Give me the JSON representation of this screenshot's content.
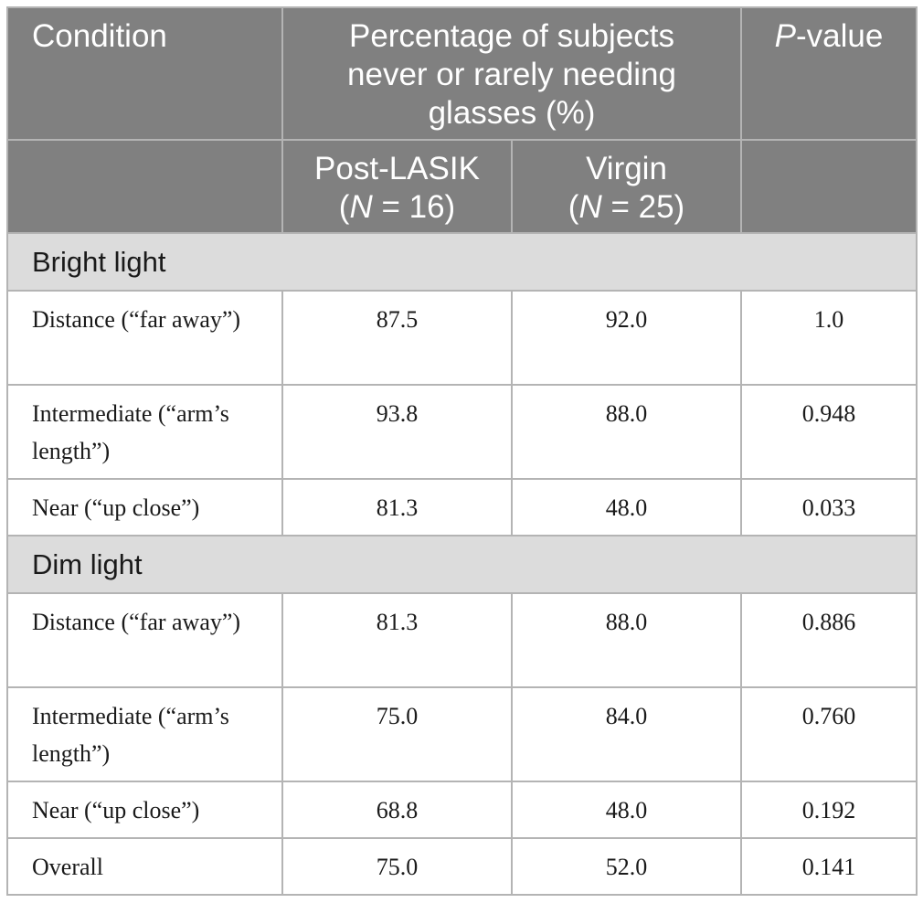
{
  "header": {
    "condition": "Condition",
    "percentage_heading": "Percentage of subjects never or rarely needing glasses (%)",
    "pvalue_p": "P",
    "pvalue_suffix": "-value",
    "post_lasik_label": "Post-LASIK",
    "post_lasik_n_prefix": "(",
    "post_lasik_n_var": "N",
    "post_lasik_n_value": " = 16)",
    "virgin_label": "Virgin",
    "virgin_n_prefix": "(",
    "virgin_n_var": "N",
    "virgin_n_value": " = 25)"
  },
  "sections": [
    {
      "title": "Bright light",
      "rows": [
        {
          "condition": "Distance (“far away”)",
          "post_lasik": "87.5",
          "virgin": "92.0",
          "p_value": "1.0"
        },
        {
          "condition": "Intermediate (“arm’s length”)",
          "post_lasik": "93.8",
          "virgin": "88.0",
          "p_value": "0.948"
        },
        {
          "condition": "Near (“up close”)",
          "post_lasik": "81.3",
          "virgin": "48.0",
          "p_value": "0.033"
        }
      ]
    },
    {
      "title": "Dim light",
      "rows": [
        {
          "condition": "Distance (“far away”)",
          "post_lasik": "81.3",
          "virgin": "88.0",
          "p_value": "0.886"
        },
        {
          "condition": "Intermediate (“arm’s length”)",
          "post_lasik": "75.0",
          "virgin": "84.0",
          "p_value": "0.760"
        },
        {
          "condition": "Near (“up close”)",
          "post_lasik": "68.8",
          "virgin": "48.0",
          "p_value": "0.192"
        },
        {
          "condition": "Overall",
          "post_lasik": "75.0",
          "virgin": "52.0",
          "p_value": "0.141"
        }
      ]
    }
  ],
  "colors": {
    "header_bg": "#808080",
    "section_bg": "#dcdcdc",
    "grid": "#b4b4b4"
  }
}
